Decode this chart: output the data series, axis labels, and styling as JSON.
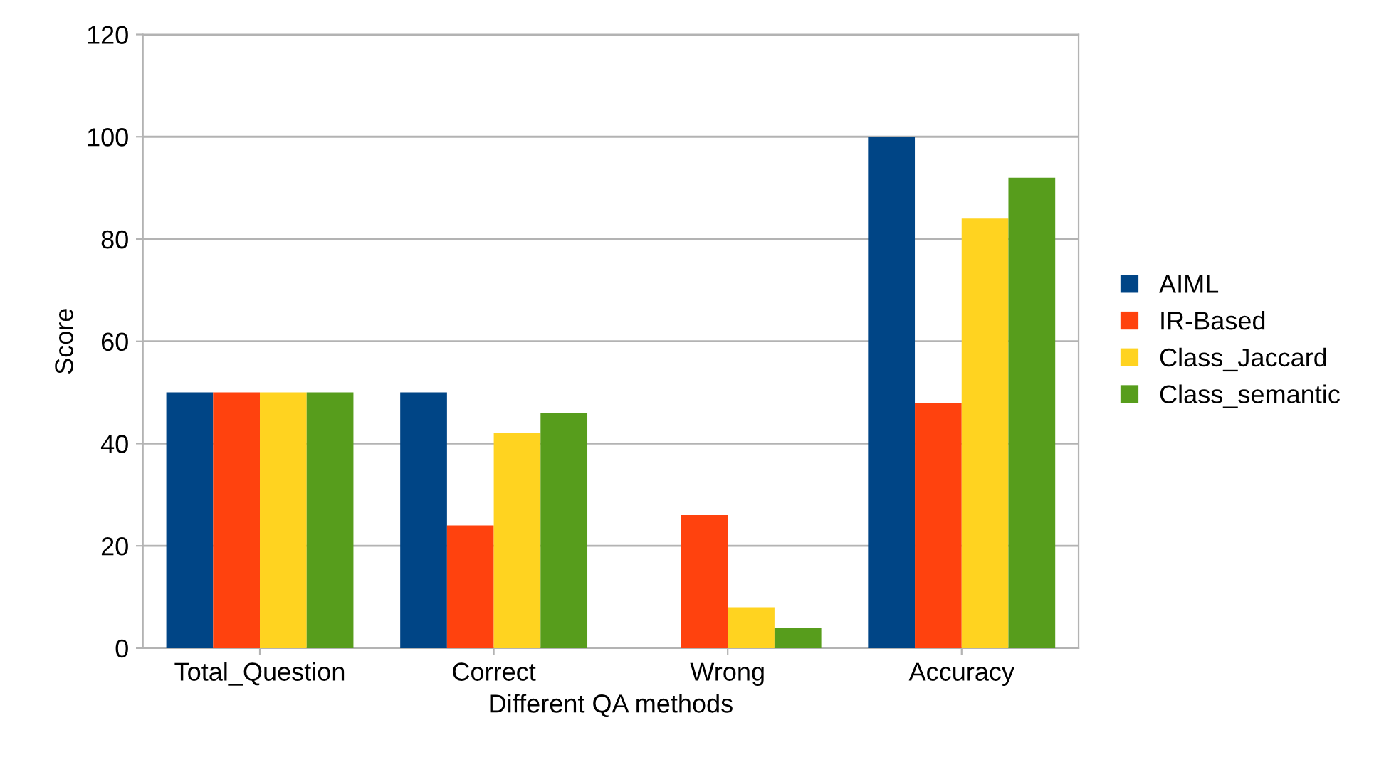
{
  "chart_data": {
    "type": "bar",
    "xlabel": "Different QA methods",
    "ylabel": "Score",
    "categories": [
      "Total_Question",
      "Correct",
      "Wrong",
      "Accuracy"
    ],
    "series": [
      {
        "name": "AIML",
        "color": "#004586",
        "values": [
          50,
          50,
          0,
          100
        ]
      },
      {
        "name": "IR-Based",
        "color": "#ff420e",
        "values": [
          50,
          24,
          26,
          48
        ]
      },
      {
        "name": "Class_Jaccard",
        "color": "#ffd320",
        "values": [
          50,
          42,
          8,
          84
        ]
      },
      {
        "name": "Class_semantic",
        "color": "#579d1c",
        "values": [
          50,
          46,
          4,
          92
        ]
      }
    ],
    "ylim": [
      0,
      120
    ],
    "yticks": [
      0,
      20,
      40,
      60,
      80,
      100,
      120
    ],
    "grid": "y",
    "legend": "right"
  }
}
